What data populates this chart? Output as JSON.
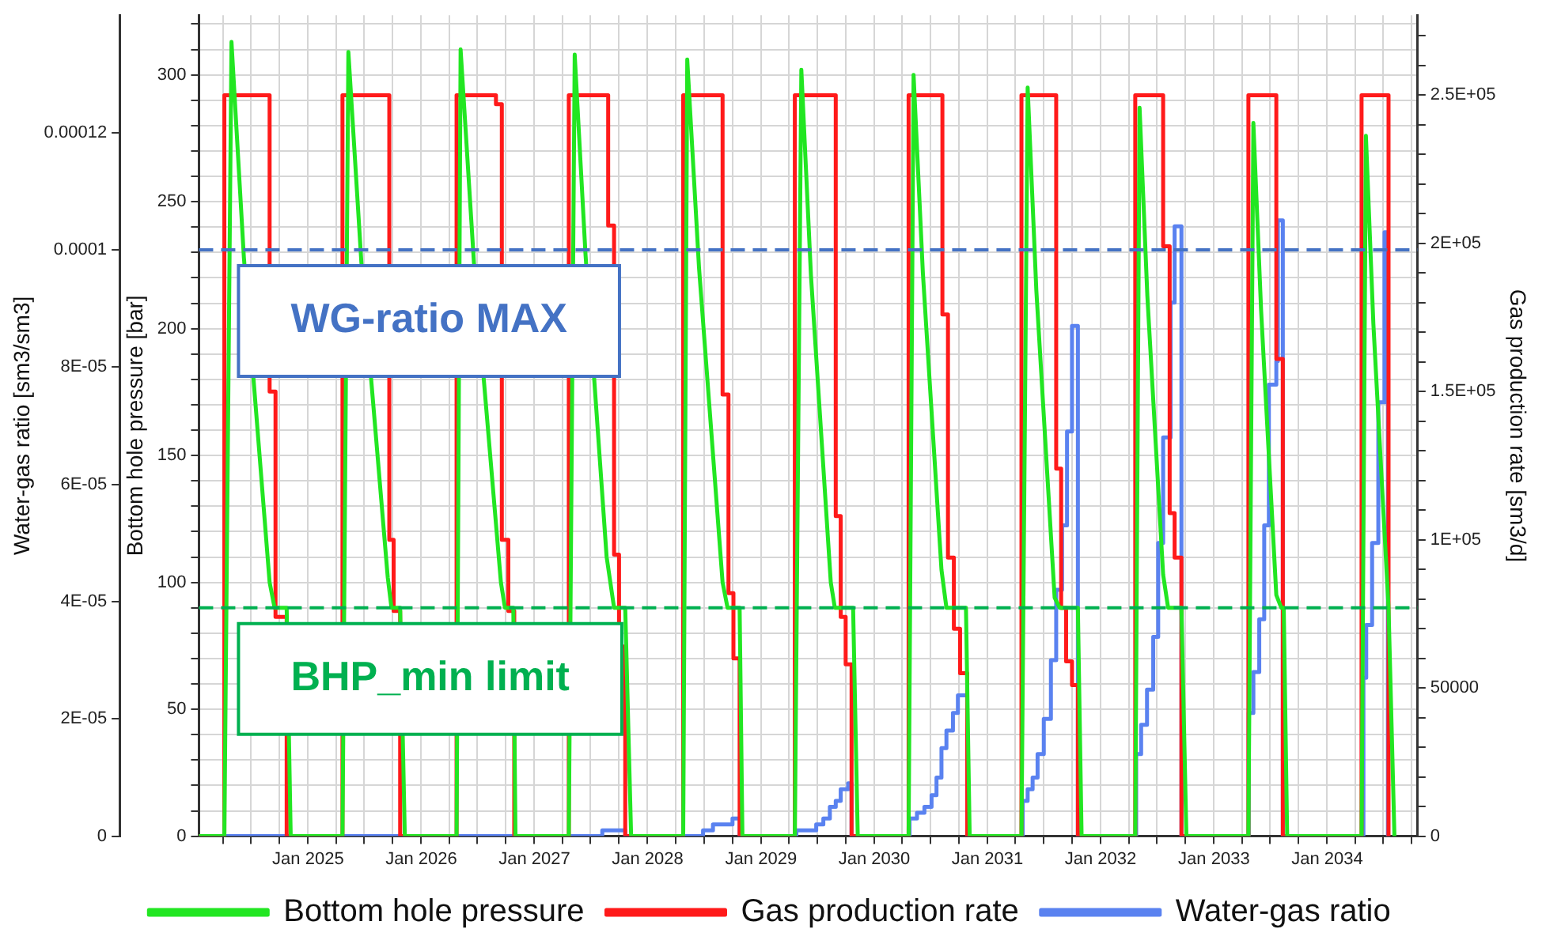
{
  "chart_data": {
    "type": "line",
    "ylabel": "Bottom hole pressure [bar]",
    "y2label": "Gas production rate [sm3/d]",
    "y3label": "Water-gas ratio [sm3/sm3]",
    "xlim": [
      "2024-01-15",
      "2034-10-20"
    ],
    "xticks": [
      {
        "value": "2024-04",
        "label": null
      },
      {
        "value": "2024-07",
        "label": null
      },
      {
        "value": "2024-10",
        "label": null
      },
      {
        "value": "2025-01",
        "label": "Jan 2025"
      },
      {
        "value": "2025-04",
        "label": null
      },
      {
        "value": "2025-07",
        "label": null
      },
      {
        "value": "2025-10",
        "label": null
      },
      {
        "value": "2026-01",
        "label": "Jan 2026"
      },
      {
        "value": "2026-04",
        "label": null
      },
      {
        "value": "2026-07",
        "label": null
      },
      {
        "value": "2026-10",
        "label": null
      },
      {
        "value": "2027-01",
        "label": "Jan 2027"
      },
      {
        "value": "2027-04",
        "label": null
      },
      {
        "value": "2027-07",
        "label": null
      },
      {
        "value": "2027-10",
        "label": null
      },
      {
        "value": "2028-01",
        "label": "Jan 2028"
      },
      {
        "value": "2028-04",
        "label": null
      },
      {
        "value": "2028-07",
        "label": null
      },
      {
        "value": "2028-10",
        "label": null
      },
      {
        "value": "2029-01",
        "label": "Jan 2029"
      },
      {
        "value": "2029-04",
        "label": null
      },
      {
        "value": "2029-07",
        "label": null
      },
      {
        "value": "2029-10",
        "label": null
      },
      {
        "value": "2030-01",
        "label": "Jan 2030"
      },
      {
        "value": "2030-04",
        "label": null
      },
      {
        "value": "2030-07",
        "label": null
      },
      {
        "value": "2030-10",
        "label": null
      },
      {
        "value": "2031-01",
        "label": "Jan 2031"
      },
      {
        "value": "2031-04",
        "label": null
      },
      {
        "value": "2031-07",
        "label": null
      },
      {
        "value": "2031-10",
        "label": null
      },
      {
        "value": "2032-01",
        "label": "Jan 2032"
      },
      {
        "value": "2032-04",
        "label": null
      },
      {
        "value": "2032-07",
        "label": null
      },
      {
        "value": "2032-10",
        "label": null
      },
      {
        "value": "2033-01",
        "label": "Jan 2033"
      },
      {
        "value": "2033-04",
        "label": null
      },
      {
        "value": "2033-07",
        "label": null
      },
      {
        "value": "2033-10",
        "label": null
      },
      {
        "value": "2034-01",
        "label": "Jan 2034"
      },
      {
        "value": "2034-04",
        "label": null
      },
      {
        "value": "2034-07",
        "label": null
      },
      {
        "value": "2034-10",
        "label": null
      }
    ],
    "ylim": [
      0,
      323.5
    ],
    "yticks": [
      0,
      {
        "value": 10,
        "label": null
      },
      {
        "value": 20,
        "label": null
      },
      {
        "value": 30,
        "label": null
      },
      {
        "value": 40,
        "label": null
      },
      50,
      {
        "value": 60,
        "label": null
      },
      {
        "value": 70,
        "label": null
      },
      {
        "value": 80,
        "label": null
      },
      {
        "value": 90,
        "label": null
      },
      100,
      {
        "value": 110,
        "label": null
      },
      {
        "value": 120,
        "label": null
      },
      {
        "value": 130,
        "label": null
      },
      {
        "value": 140,
        "label": null
      },
      150,
      {
        "value": 160,
        "label": null
      },
      {
        "value": 170,
        "label": null
      },
      {
        "value": 180,
        "label": null
      },
      {
        "value": 190,
        "label": null
      },
      200,
      {
        "value": 210,
        "label": null
      },
      {
        "value": 220,
        "label": null
      },
      {
        "value": 230,
        "label": null
      },
      {
        "value": 240,
        "label": null
      },
      250,
      {
        "value": 260,
        "label": null
      },
      {
        "value": 270,
        "label": null
      },
      {
        "value": 280,
        "label": null
      },
      {
        "value": 290,
        "label": null
      },
      300,
      {
        "value": 310,
        "label": null
      },
      {
        "value": 320,
        "label": null
      }
    ],
    "y2lim": [
      0,
      277000
    ],
    "y2ticks": [
      0,
      {
        "value": 10000,
        "label": null
      },
      {
        "value": 20000,
        "label": null
      },
      {
        "value": 30000,
        "label": null
      },
      {
        "value": 40000,
        "label": null
      },
      50000,
      {
        "value": 60000,
        "label": null
      },
      {
        "value": 70000,
        "label": null
      },
      {
        "value": 80000,
        "label": null
      },
      {
        "value": 90000,
        "label": null
      },
      {
        "value": 100000,
        "label": "1E+05"
      },
      {
        "value": 110000,
        "label": null
      },
      {
        "value": 120000,
        "label": null
      },
      {
        "value": 130000,
        "label": null
      },
      {
        "value": 140000,
        "label": null
      },
      {
        "value": 150000,
        "label": "1.5E+05"
      },
      {
        "value": 160000,
        "label": null
      },
      {
        "value": 170000,
        "label": null
      },
      {
        "value": 180000,
        "label": null
      },
      {
        "value": 190000,
        "label": null
      },
      {
        "value": 200000,
        "label": "2E+05"
      },
      {
        "value": 210000,
        "label": null
      },
      {
        "value": 220000,
        "label": null
      },
      {
        "value": 230000,
        "label": null
      },
      {
        "value": 240000,
        "label": null
      },
      {
        "value": 250000,
        "label": "2.5E+05"
      },
      {
        "value": 260000,
        "label": null
      },
      {
        "value": 270000,
        "label": null
      }
    ],
    "y3lim": [
      0,
      0.00014
    ],
    "y3ticks": [
      0,
      {
        "value": 2e-05,
        "label": "2E-05"
      },
      {
        "value": 4e-05,
        "label": "4E-05"
      },
      {
        "value": 6e-05,
        "label": "6E-05"
      },
      {
        "value": 8e-05,
        "label": "8E-05"
      },
      0.0001,
      0.00012
    ],
    "grid": true,
    "legend": "bottom",
    "marker": "none",
    "ref_lines": [
      {
        "axis": "y3",
        "value": 0.0001,
        "label": "WG-ratio MAX",
        "color": "#4472c4",
        "line_style": "dashed"
      },
      {
        "axis": "y",
        "value": 90,
        "label": "BHP_min limit",
        "color": "#00b050",
        "line_style": "dashed"
      }
    ],
    "series": [
      {
        "name": "Bottom hole pressure",
        "color": "#22e622",
        "axis": "y",
        "x": [
          "2024-01-15",
          "2024-04-06",
          "2024-04-29",
          "2024-06-08",
          "2024-08-30",
          "2024-09-15",
          "2024-10-24",
          "2024-11-06",
          "2025-04-22",
          "2025-05-11",
          "2025-06-22",
          "2025-09-15",
          "2025-09-27",
          "2025-10-25",
          "2025-11-09",
          "2026-04-25",
          "2026-05-08",
          "2026-06-20",
          "2026-09-15",
          "2026-09-28",
          "2026-10-25",
          "2026-11-01",
          "2027-04-22",
          "2027-05-11",
          "2027-06-15",
          "2027-08-22",
          "2027-09-15",
          "2027-10-21",
          "2027-11-09",
          "2028-04-25",
          "2028-05-08",
          "2028-06-15",
          "2028-08-30",
          "2028-09-15",
          "2028-10-24",
          "2028-11-02",
          "2029-04-20",
          "2029-05-11",
          "2029-06-11",
          "2029-08-14",
          "2029-08-27",
          "2029-10-25",
          "2029-11-09",
          "2030-04-22",
          "2030-05-08",
          "2030-06-07",
          "2030-08-06",
          "2030-08-22",
          "2030-10-24",
          "2030-11-05",
          "2031-04-21",
          "2031-05-11",
          "2031-06-08",
          "2031-08-06",
          "2031-08-22",
          "2031-10-20",
          "2031-11-01",
          "2032-04-22",
          "2032-05-06",
          "2032-05-31",
          "2032-07-21",
          "2032-08-06",
          "2032-09-18",
          "2032-10-04",
          "2033-04-22",
          "2033-05-08",
          "2033-06-02",
          "2033-07-21",
          "2033-08-06",
          "2033-08-14",
          "2033-08-25",
          "2034-04-22",
          "2034-05-06",
          "2034-05-30",
          "2034-07-18",
          "2034-08-06"
        ],
        "values": [
          0,
          0,
          313,
          228,
          100,
          90,
          90,
          0,
          0,
          309,
          226,
          102,
          90,
          90,
          0,
          0,
          310,
          226,
          100,
          90,
          90,
          0,
          0,
          308,
          229,
          110,
          90,
          90,
          0,
          0,
          306,
          224,
          100,
          90,
          90,
          0,
          0,
          302,
          221,
          100,
          90,
          90,
          0,
          0,
          300,
          222,
          105,
          90,
          90,
          0,
          0,
          295,
          215,
          94,
          90,
          90,
          0,
          0,
          287,
          213,
          103,
          90,
          90,
          0,
          0,
          281,
          207,
          95,
          90,
          90,
          0,
          0,
          276,
          202,
          90,
          0
        ]
      },
      {
        "name": "Gas production rate",
        "color": "#ff1a1a",
        "type": "step",
        "axis": "y2",
        "x": [
          "2024-01-15",
          "2024-04-06",
          "2024-08-30",
          "2024-09-18",
          "2024-10-24",
          "2025-04-22",
          "2025-09-20",
          "2025-10-04",
          "2025-10-25",
          "2026-04-25",
          "2026-08-30",
          "2026-09-18",
          "2026-10-09",
          "2026-10-28",
          "2027-04-22",
          "2027-08-27",
          "2027-09-15",
          "2027-10-01",
          "2027-10-21",
          "2028-04-25",
          "2028-08-30",
          "2028-09-18",
          "2028-10-04",
          "2028-10-24",
          "2029-04-20",
          "2029-08-30",
          "2029-09-15",
          "2029-10-01",
          "2029-10-20",
          "2030-04-22",
          "2030-08-09",
          "2030-08-27",
          "2030-09-15",
          "2030-10-05",
          "2030-10-28",
          "2031-04-21",
          "2031-08-11",
          "2031-08-27",
          "2031-09-12",
          "2031-10-01",
          "2031-10-20",
          "2032-04-22",
          "2032-07-21",
          "2032-08-11",
          "2032-08-27",
          "2032-09-18",
          "2033-04-22",
          "2033-07-21",
          "2033-08-11",
          "2034-04-22",
          "2034-07-18"
        ],
        "values": [
          0,
          250000,
          150000,
          74000,
          0,
          250000,
          100000,
          76000,
          0,
          250000,
          247000,
          100000,
          76000,
          0,
          250000,
          206000,
          95000,
          64000,
          0,
          250000,
          149000,
          82000,
          60000,
          0,
          250000,
          108000,
          74000,
          58000,
          0,
          250000,
          176000,
          94000,
          70000,
          55000,
          0,
          250000,
          124000,
          77000,
          59000,
          51000,
          0,
          250000,
          199000,
          109000,
          94000,
          0,
          250000,
          161000,
          0,
          250000,
          0
        ]
      },
      {
        "name": "Water-gas ratio",
        "color": "#5a82f0",
        "type": "step",
        "axis": "y3",
        "x": [
          "2024-01-15",
          "2027-08-08",
          "2027-10-21",
          "2028-06-28",
          "2028-07-30",
          "2028-08-30",
          "2028-10-01",
          "2028-10-24",
          "2029-04-25",
          "2029-05-27",
          "2029-06-28",
          "2029-07-21",
          "2029-08-11",
          "2029-08-30",
          "2029-09-15",
          "2029-10-09",
          "2029-10-20",
          "2030-04-25",
          "2030-05-19",
          "2030-06-12",
          "2030-07-05",
          "2030-07-21",
          "2030-08-06",
          "2030-08-22",
          "2030-09-12",
          "2030-09-28",
          "2030-10-28",
          "2031-04-25",
          "2031-05-11",
          "2031-05-27",
          "2031-06-12",
          "2031-07-02",
          "2031-07-25",
          "2031-08-11",
          "2031-08-30",
          "2031-09-15",
          "2031-10-01",
          "2031-10-20",
          "2032-04-25",
          "2032-05-11",
          "2032-05-30",
          "2032-06-19",
          "2032-07-05",
          "2032-07-21",
          "2032-08-14",
          "2032-08-27",
          "2032-09-18",
          "2033-04-23",
          "2033-05-08",
          "2033-05-27",
          "2033-06-12",
          "2033-06-27",
          "2033-07-21",
          "2033-07-26",
          "2033-08-11",
          "2034-04-28",
          "2034-05-07",
          "2034-05-26",
          "2034-06-15",
          "2034-07-05",
          "2034-07-16"
        ],
        "values": [
          0,
          1e-06,
          0,
          1e-06,
          2e-06,
          2e-06,
          3e-06,
          0,
          1e-06,
          1e-06,
          2e-06,
          3e-06,
          5e-06,
          6e-06,
          8e-06,
          9e-06,
          0,
          3e-06,
          4e-06,
          5e-06,
          7e-06,
          1e-05,
          1.5e-05,
          1.8e-05,
          2.1e-05,
          2.4e-05,
          0,
          6e-06,
          8e-06,
          1e-05,
          1.4e-05,
          2e-05,
          3e-05,
          4.2e-05,
          5.3e-05,
          6.9e-05,
          8.7e-05,
          0,
          1.4e-05,
          1.9e-05,
          2.5e-05,
          3.4e-05,
          5e-05,
          6.8e-05,
          9.1e-05,
          0.000104,
          0,
          2.1e-05,
          2.8e-05,
          3.7e-05,
          5.3e-05,
          7.7e-05,
          8.1e-05,
          0.000105,
          0,
          2.7e-05,
          3.6e-05,
          5e-05,
          7.4e-05,
          0.000103,
          0
        ]
      }
    ]
  }
}
